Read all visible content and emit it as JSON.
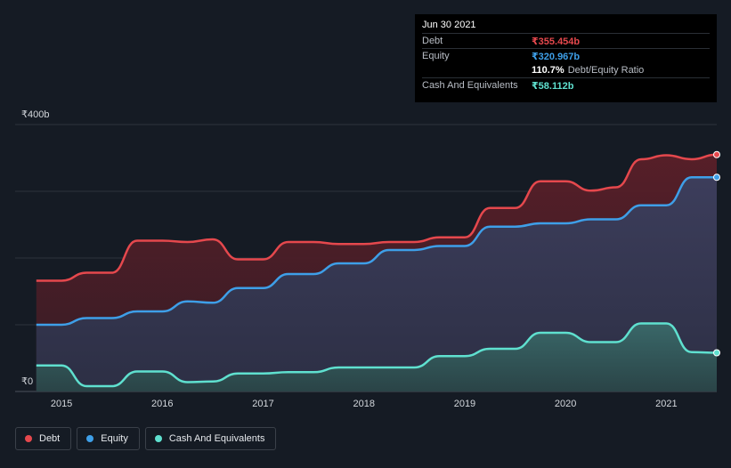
{
  "tooltip": {
    "date": "Jun 30 2021",
    "rows": [
      {
        "label": "Debt",
        "value": "₹355.454b",
        "color": "#e5484d"
      },
      {
        "label": "Equity",
        "value": "₹320.967b",
        "color": "#3e9fe8"
      },
      {
        "ratio_value": "110.7%",
        "ratio_label": "Debt/Equity Ratio"
      },
      {
        "label": "Cash And Equivalents",
        "value": "₹58.112b",
        "color": "#5fe0cf"
      }
    ]
  },
  "legend": [
    {
      "label": "Debt",
      "color": "#e5484d"
    },
    {
      "label": "Equity",
      "color": "#3e9fe8"
    },
    {
      "label": "Cash And Equivalents",
      "color": "#5fe0cf"
    }
  ],
  "chart_data": {
    "type": "area",
    "y_ticks": [
      {
        "value": 400,
        "label": "₹400b"
      },
      {
        "value": 0,
        "label": "₹0"
      }
    ],
    "x_ticks": [
      "2015",
      "2016",
      "2017",
      "2018",
      "2019",
      "2020",
      "2021"
    ],
    "ylim": [
      0,
      400
    ],
    "grid": true,
    "legend_position": "bottom-left",
    "x": [
      2014.75,
      2015.0,
      2015.25,
      2015.5,
      2015.75,
      2016.0,
      2016.25,
      2016.5,
      2016.75,
      2017.0,
      2017.25,
      2017.5,
      2017.75,
      2018.0,
      2018.25,
      2018.5,
      2018.75,
      2019.0,
      2019.25,
      2019.5,
      2019.75,
      2020.0,
      2020.25,
      2020.5,
      2020.75,
      2021.0,
      2021.25,
      2021.5
    ],
    "series": [
      {
        "name": "Debt",
        "color": "#e5484d",
        "values": [
          166,
          166,
          178,
          178,
          226,
          226,
          224,
          228,
          198,
          198,
          224,
          224,
          221,
          221,
          224,
          224,
          231,
          231,
          275,
          275,
          315,
          315,
          301,
          306,
          348,
          354,
          348,
          355
        ]
      },
      {
        "name": "Equity",
        "color": "#3e9fe8",
        "values": [
          100,
          100,
          110,
          110,
          120,
          120,
          135,
          133,
          155,
          155,
          176,
          176,
          192,
          192,
          212,
          212,
          218,
          218,
          247,
          247,
          252,
          252,
          258,
          258,
          279,
          279,
          321,
          321
        ]
      },
      {
        "name": "Cash And Equivalents",
        "color": "#5fe0cf",
        "values": [
          39,
          39,
          8,
          8,
          30,
          30,
          14,
          15,
          27,
          27,
          29,
          29,
          36,
          36,
          36,
          36,
          53,
          53,
          64,
          64,
          88,
          88,
          74,
          74,
          102,
          102,
          59,
          58
        ]
      }
    ]
  }
}
